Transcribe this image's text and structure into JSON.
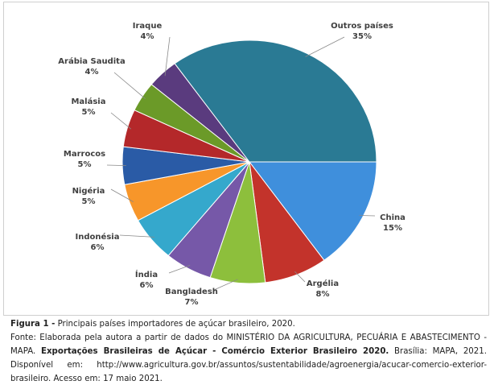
{
  "chart_data": {
    "type": "pie",
    "categories": [
      "China",
      "Argélia",
      "Bangladesh",
      "Índia",
      "Indonésia",
      "Nigéria",
      "Marrocos",
      "Malásia",
      "Arábia Saudita",
      "Iraque",
      "Outros países"
    ],
    "values": [
      15,
      8,
      7,
      6,
      6,
      5,
      5,
      5,
      4,
      4,
      35
    ],
    "value_labels": [
      "15%",
      "8%",
      "7%",
      "6%",
      "6%",
      "5%",
      "5%",
      "5%",
      "4%",
      "4%",
      "35%"
    ],
    "colors": [
      "#3f8fdc",
      "#c3332b",
      "#8dbf3c",
      "#7658a8",
      "#35a8cc",
      "#f7962a",
      "#2a5ba6",
      "#b4282a",
      "#6b9a28",
      "#5a3b7e",
      "#2a7a94"
    ]
  },
  "caption": {
    "figure_label": "Figura 1 -",
    "figure_text": "Principais países importadores de açúcar brasileiro, 2020.",
    "source_start": "Fonte: Elaborada pela autora a partir de dados do MINISTÉRIO DA AGRICULTURA, PECUÁRIA E ABASTECIMENTO - MAPA.",
    "source_bold": "Exportações Brasileiras de Açúcar - Comércio Exterior Brasileiro 2020.",
    "source_end": "Brasília: MAPA, 2021. Disponível em: http://www.agricultura.gov.br/assuntos/sustentabilidade/agroenergia/acucar-comercio-exterior-brasileiro. Acesso em: 17 maio 2021."
  }
}
